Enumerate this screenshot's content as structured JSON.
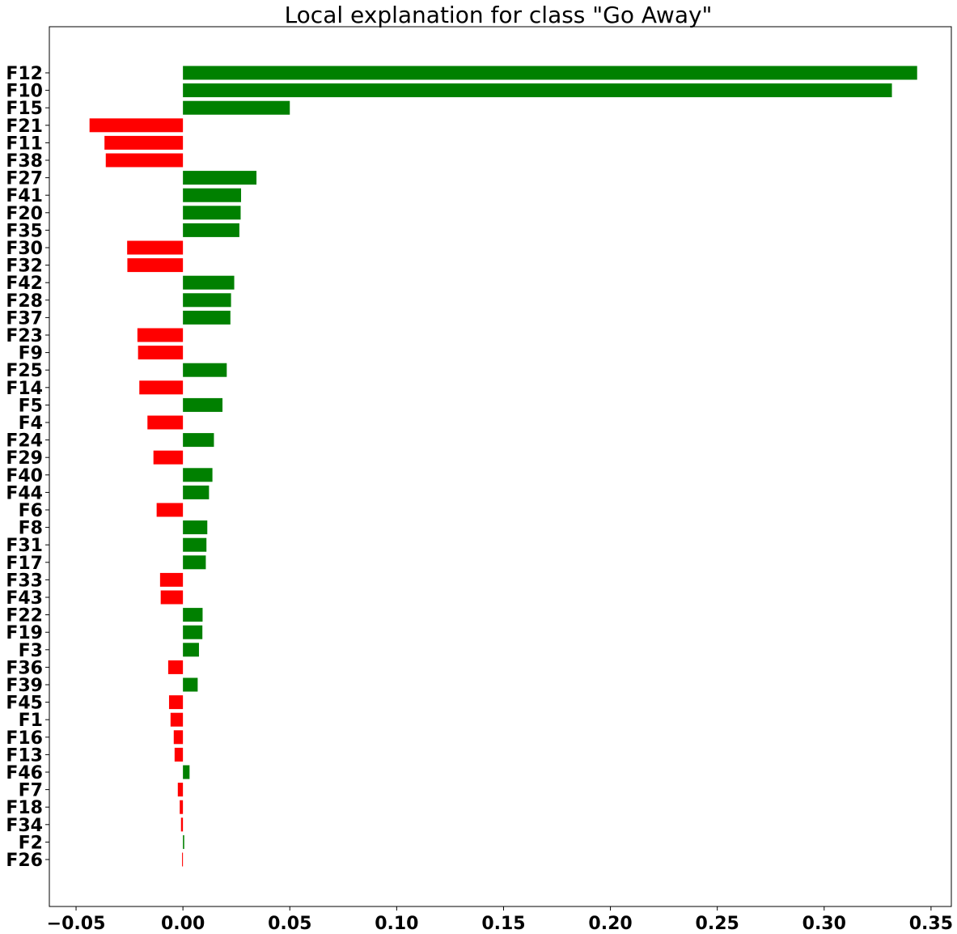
{
  "chart_data": {
    "type": "bar",
    "orientation": "horizontal",
    "title": "Local explanation for class \"Go Away\"",
    "xlabel": "",
    "ylabel": "",
    "xlim": [
      -0.0625,
      0.3595
    ],
    "grid": false,
    "legend": "none",
    "colors": {
      "positive": "#008000",
      "negative": "#ff0000"
    },
    "xticks": [
      -0.05,
      0.0,
      0.05,
      0.1,
      0.15,
      0.2,
      0.25,
      0.3,
      0.35
    ],
    "xtick_labels": [
      "−0.05",
      "0.00",
      "0.05",
      "0.10",
      "0.15",
      "0.20",
      "0.25",
      "0.30",
      "0.35"
    ],
    "categories": [
      "F12",
      "F10",
      "F15",
      "F21",
      "F11",
      "F38",
      "F27",
      "F41",
      "F20",
      "F35",
      "F30",
      "F32",
      "F42",
      "F28",
      "F37",
      "F23",
      "F9",
      "F25",
      "F14",
      "F5",
      "F4",
      "F24",
      "F29",
      "F40",
      "F44",
      "F6",
      "F8",
      "F31",
      "F17",
      "F33",
      "F43",
      "F22",
      "F19",
      "F3",
      "F36",
      "F39",
      "F45",
      "F1",
      "F16",
      "F13",
      "F46",
      "F7",
      "F18",
      "F34",
      "F2",
      "F26"
    ],
    "values": [
      0.3435,
      0.3317,
      0.05,
      -0.0437,
      -0.0367,
      -0.0361,
      0.0344,
      0.0272,
      0.027,
      0.0264,
      -0.0261,
      -0.026,
      0.024,
      0.0225,
      0.0222,
      -0.0213,
      -0.021,
      0.0205,
      -0.0204,
      0.0185,
      -0.0166,
      0.0145,
      -0.0138,
      0.0138,
      0.0122,
      -0.0123,
      0.0114,
      0.011,
      0.0107,
      -0.0107,
      -0.0104,
      0.0092,
      0.0091,
      0.0075,
      -0.0069,
      0.0069,
      -0.0065,
      -0.0058,
      -0.0043,
      -0.0039,
      0.0031,
      -0.0024,
      -0.0015,
      -0.0009,
      0.0006,
      -0.0004
    ]
  }
}
